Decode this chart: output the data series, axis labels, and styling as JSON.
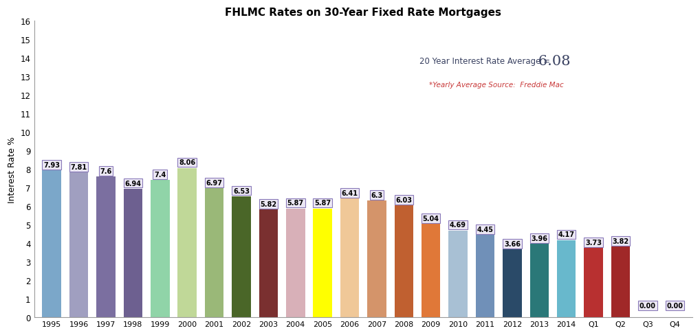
{
  "categories": [
    "1995",
    "1996",
    "1997",
    "1998",
    "1999",
    "2000",
    "2001",
    "2002",
    "2003",
    "2004",
    "2005",
    "2006",
    "2007",
    "2008",
    "2009",
    "2010",
    "2011",
    "2012",
    "2013",
    "2014",
    "Q1",
    "Q2",
    "Q3",
    "Q4"
  ],
  "values": [
    7.93,
    7.81,
    7.6,
    6.94,
    7.4,
    8.06,
    6.97,
    6.53,
    5.82,
    5.87,
    5.87,
    6.41,
    6.3,
    6.03,
    5.04,
    4.69,
    4.45,
    3.66,
    3.96,
    4.17,
    3.73,
    3.82,
    0.0,
    0.0
  ],
  "bar_colors": [
    "#7ba7c9",
    "#a09fc0",
    "#7b6fa0",
    "#6d6090",
    "#90d4a8",
    "#c0d898",
    "#9ab878",
    "#4a6628",
    "#7a3030",
    "#d8b0b8",
    "#ffff00",
    "#f0c898",
    "#d4946a",
    "#c06030",
    "#e07838",
    "#a8c0d4",
    "#7090b8",
    "#2a4a68",
    "#2a7878",
    "#68b8cc",
    "#b83030",
    "#a02828",
    "#ffffff",
    "#ffffff"
  ],
  "title": "FHLMC Rates on 30-Year Fixed Rate Mortgages",
  "ylabel": "Interest Rate %",
  "ylim": [
    0,
    16
  ],
  "yticks": [
    0,
    1,
    2,
    3,
    4,
    5,
    6,
    7,
    8,
    9,
    10,
    11,
    12,
    13,
    14,
    15,
    16
  ],
  "avg_label": "20 Year Interest Rate Average =",
  "avg_value": "   6.08",
  "source_label": "*Yearly Average Source:  Freddie Mac",
  "label_box_facecolor": "#ece8f4",
  "label_box_edgecolor": "#8878b8"
}
